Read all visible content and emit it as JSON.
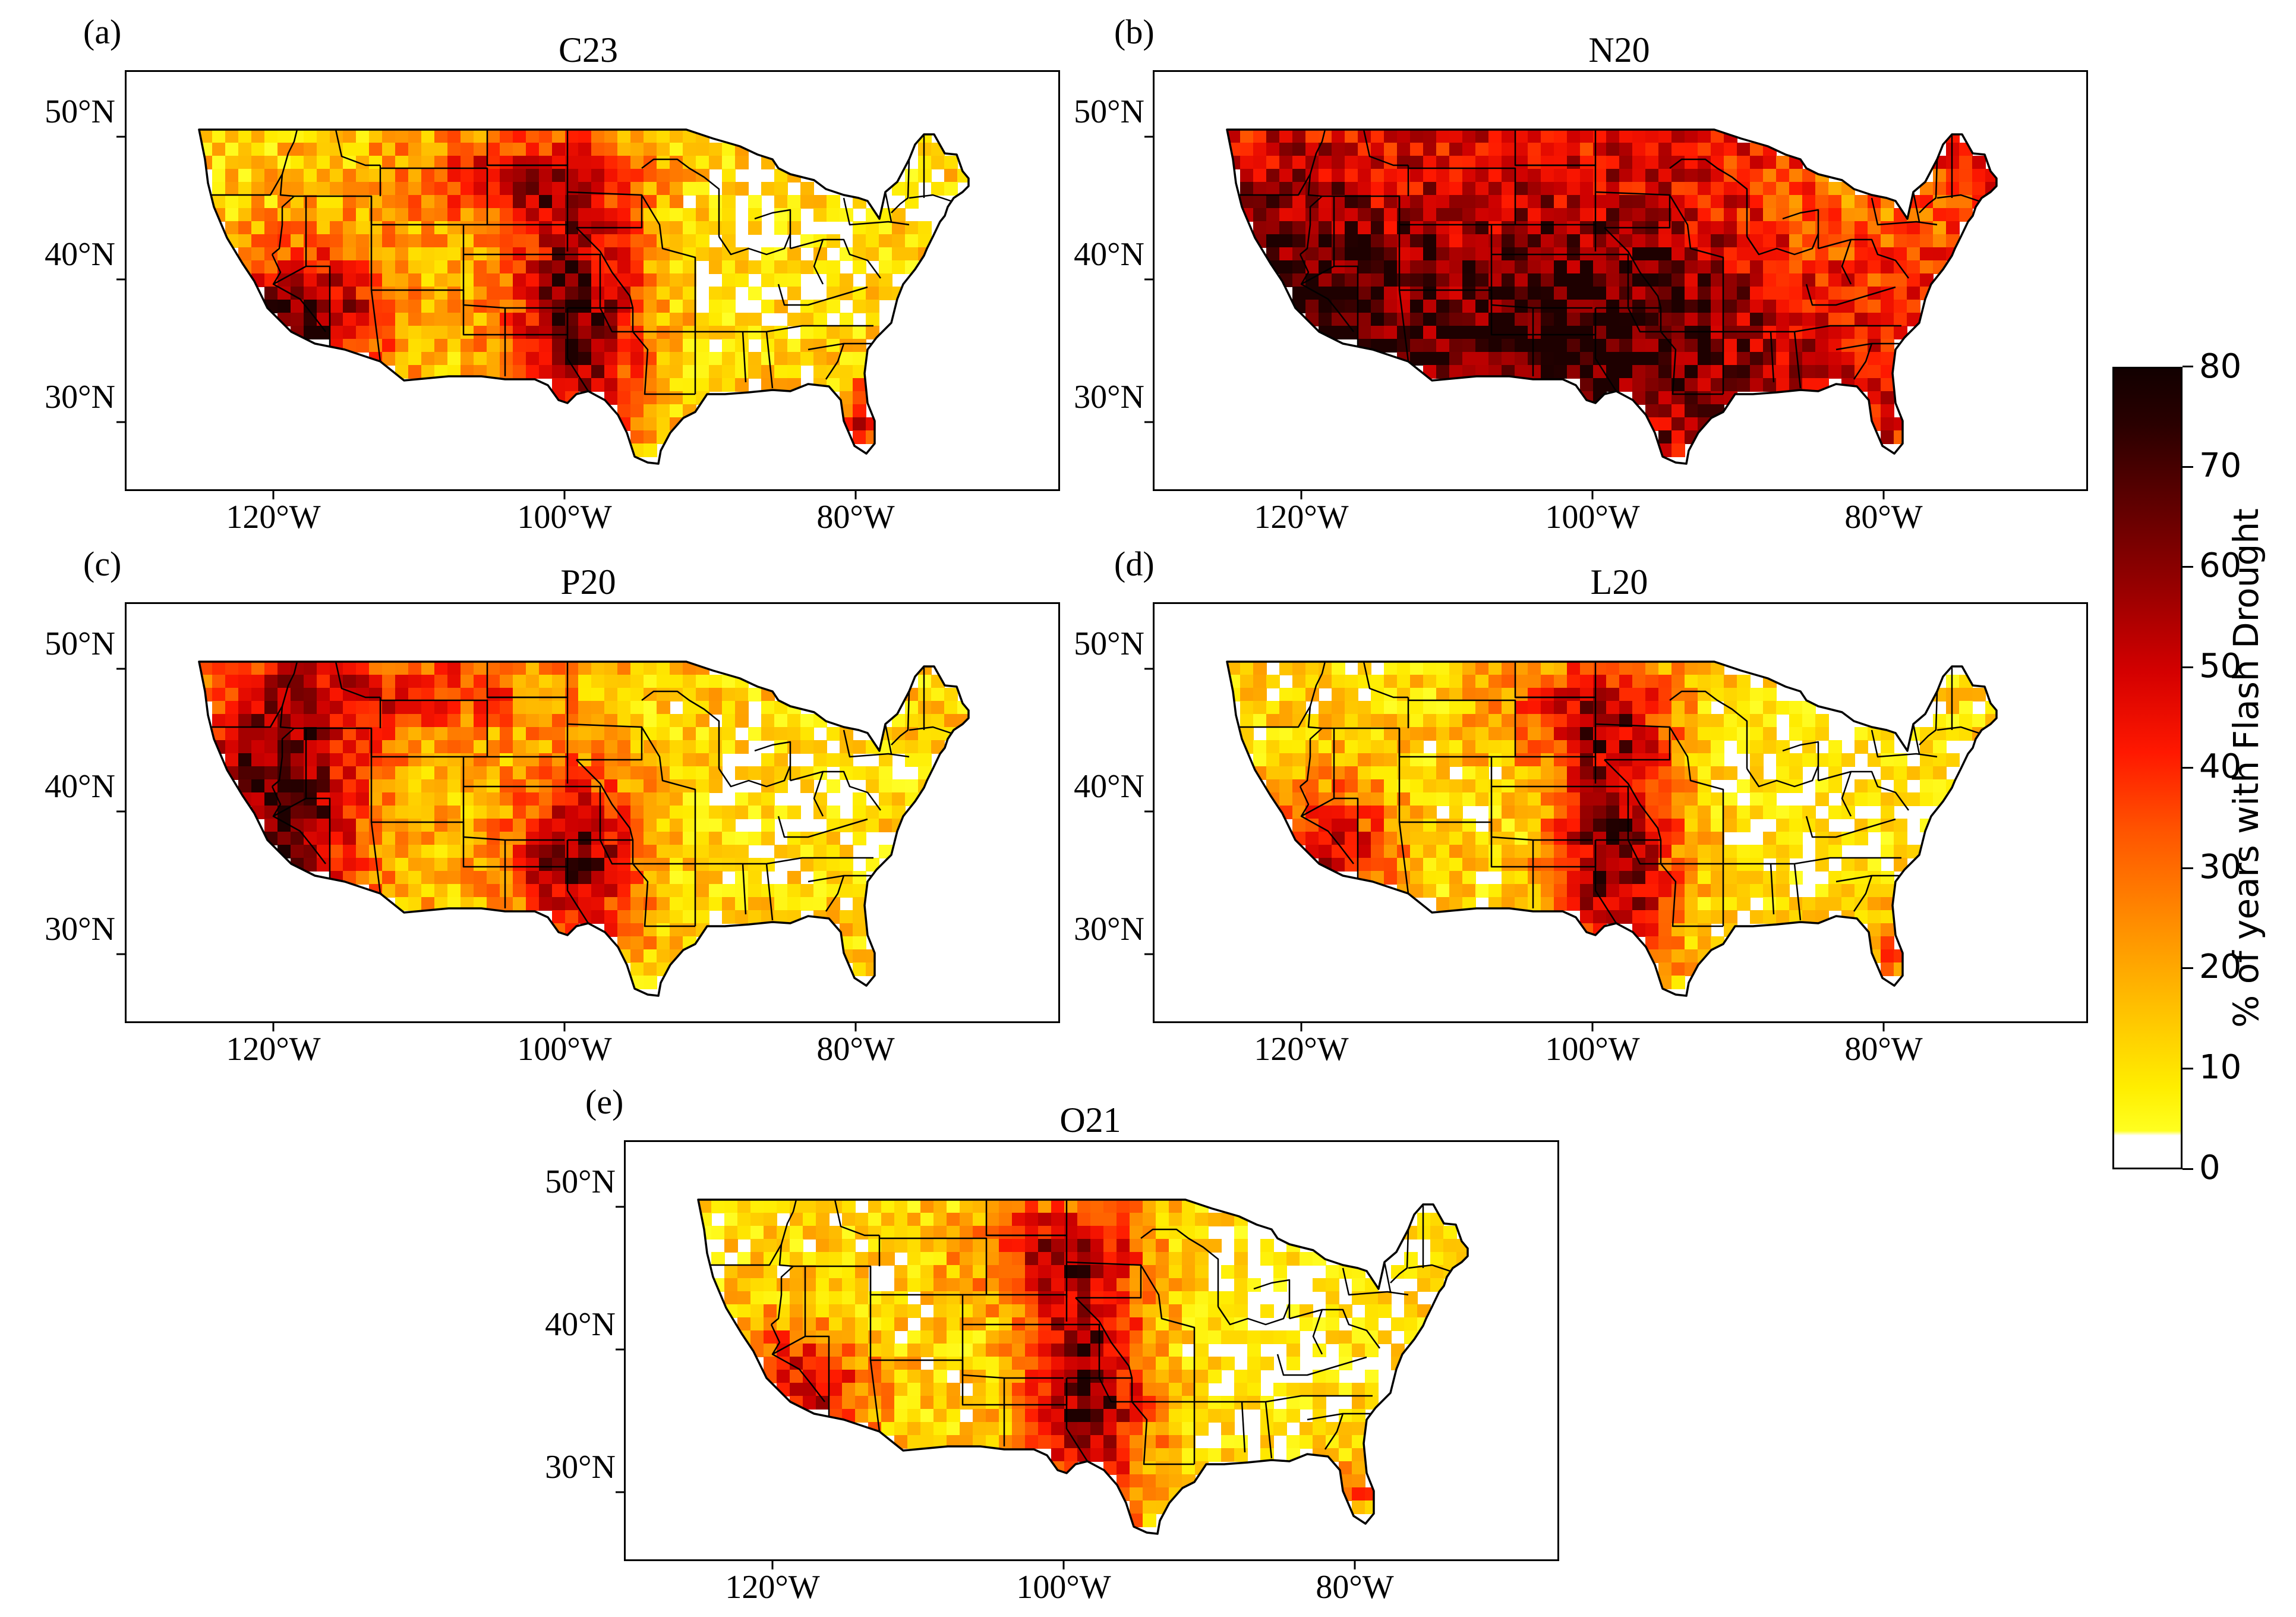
{
  "panels": [
    {
      "letter": "(a)",
      "title": "C23",
      "pattern": "dry_southwest_central"
    },
    {
      "letter": "(b)",
      "title": "N20",
      "pattern": "widespread_high"
    },
    {
      "letter": "(c)",
      "title": "P20",
      "pattern": "dry_west"
    },
    {
      "letter": "(d)",
      "title": "L20",
      "pattern": "dry_plains"
    },
    {
      "letter": "(e)",
      "title": "O21",
      "pattern": "dry_plains"
    }
  ],
  "lat_labels": [
    "50°N",
    "40°N",
    "30°N"
  ],
  "lon_labels": [
    "120°W",
    "100°W",
    "80°W"
  ],
  "colorbar": {
    "label": "% of years with Flash Drought",
    "ticks": [
      "0",
      "10",
      "20",
      "30",
      "40",
      "50",
      "60",
      "70",
      "80"
    ],
    "range": [
      0,
      80
    ]
  }
}
